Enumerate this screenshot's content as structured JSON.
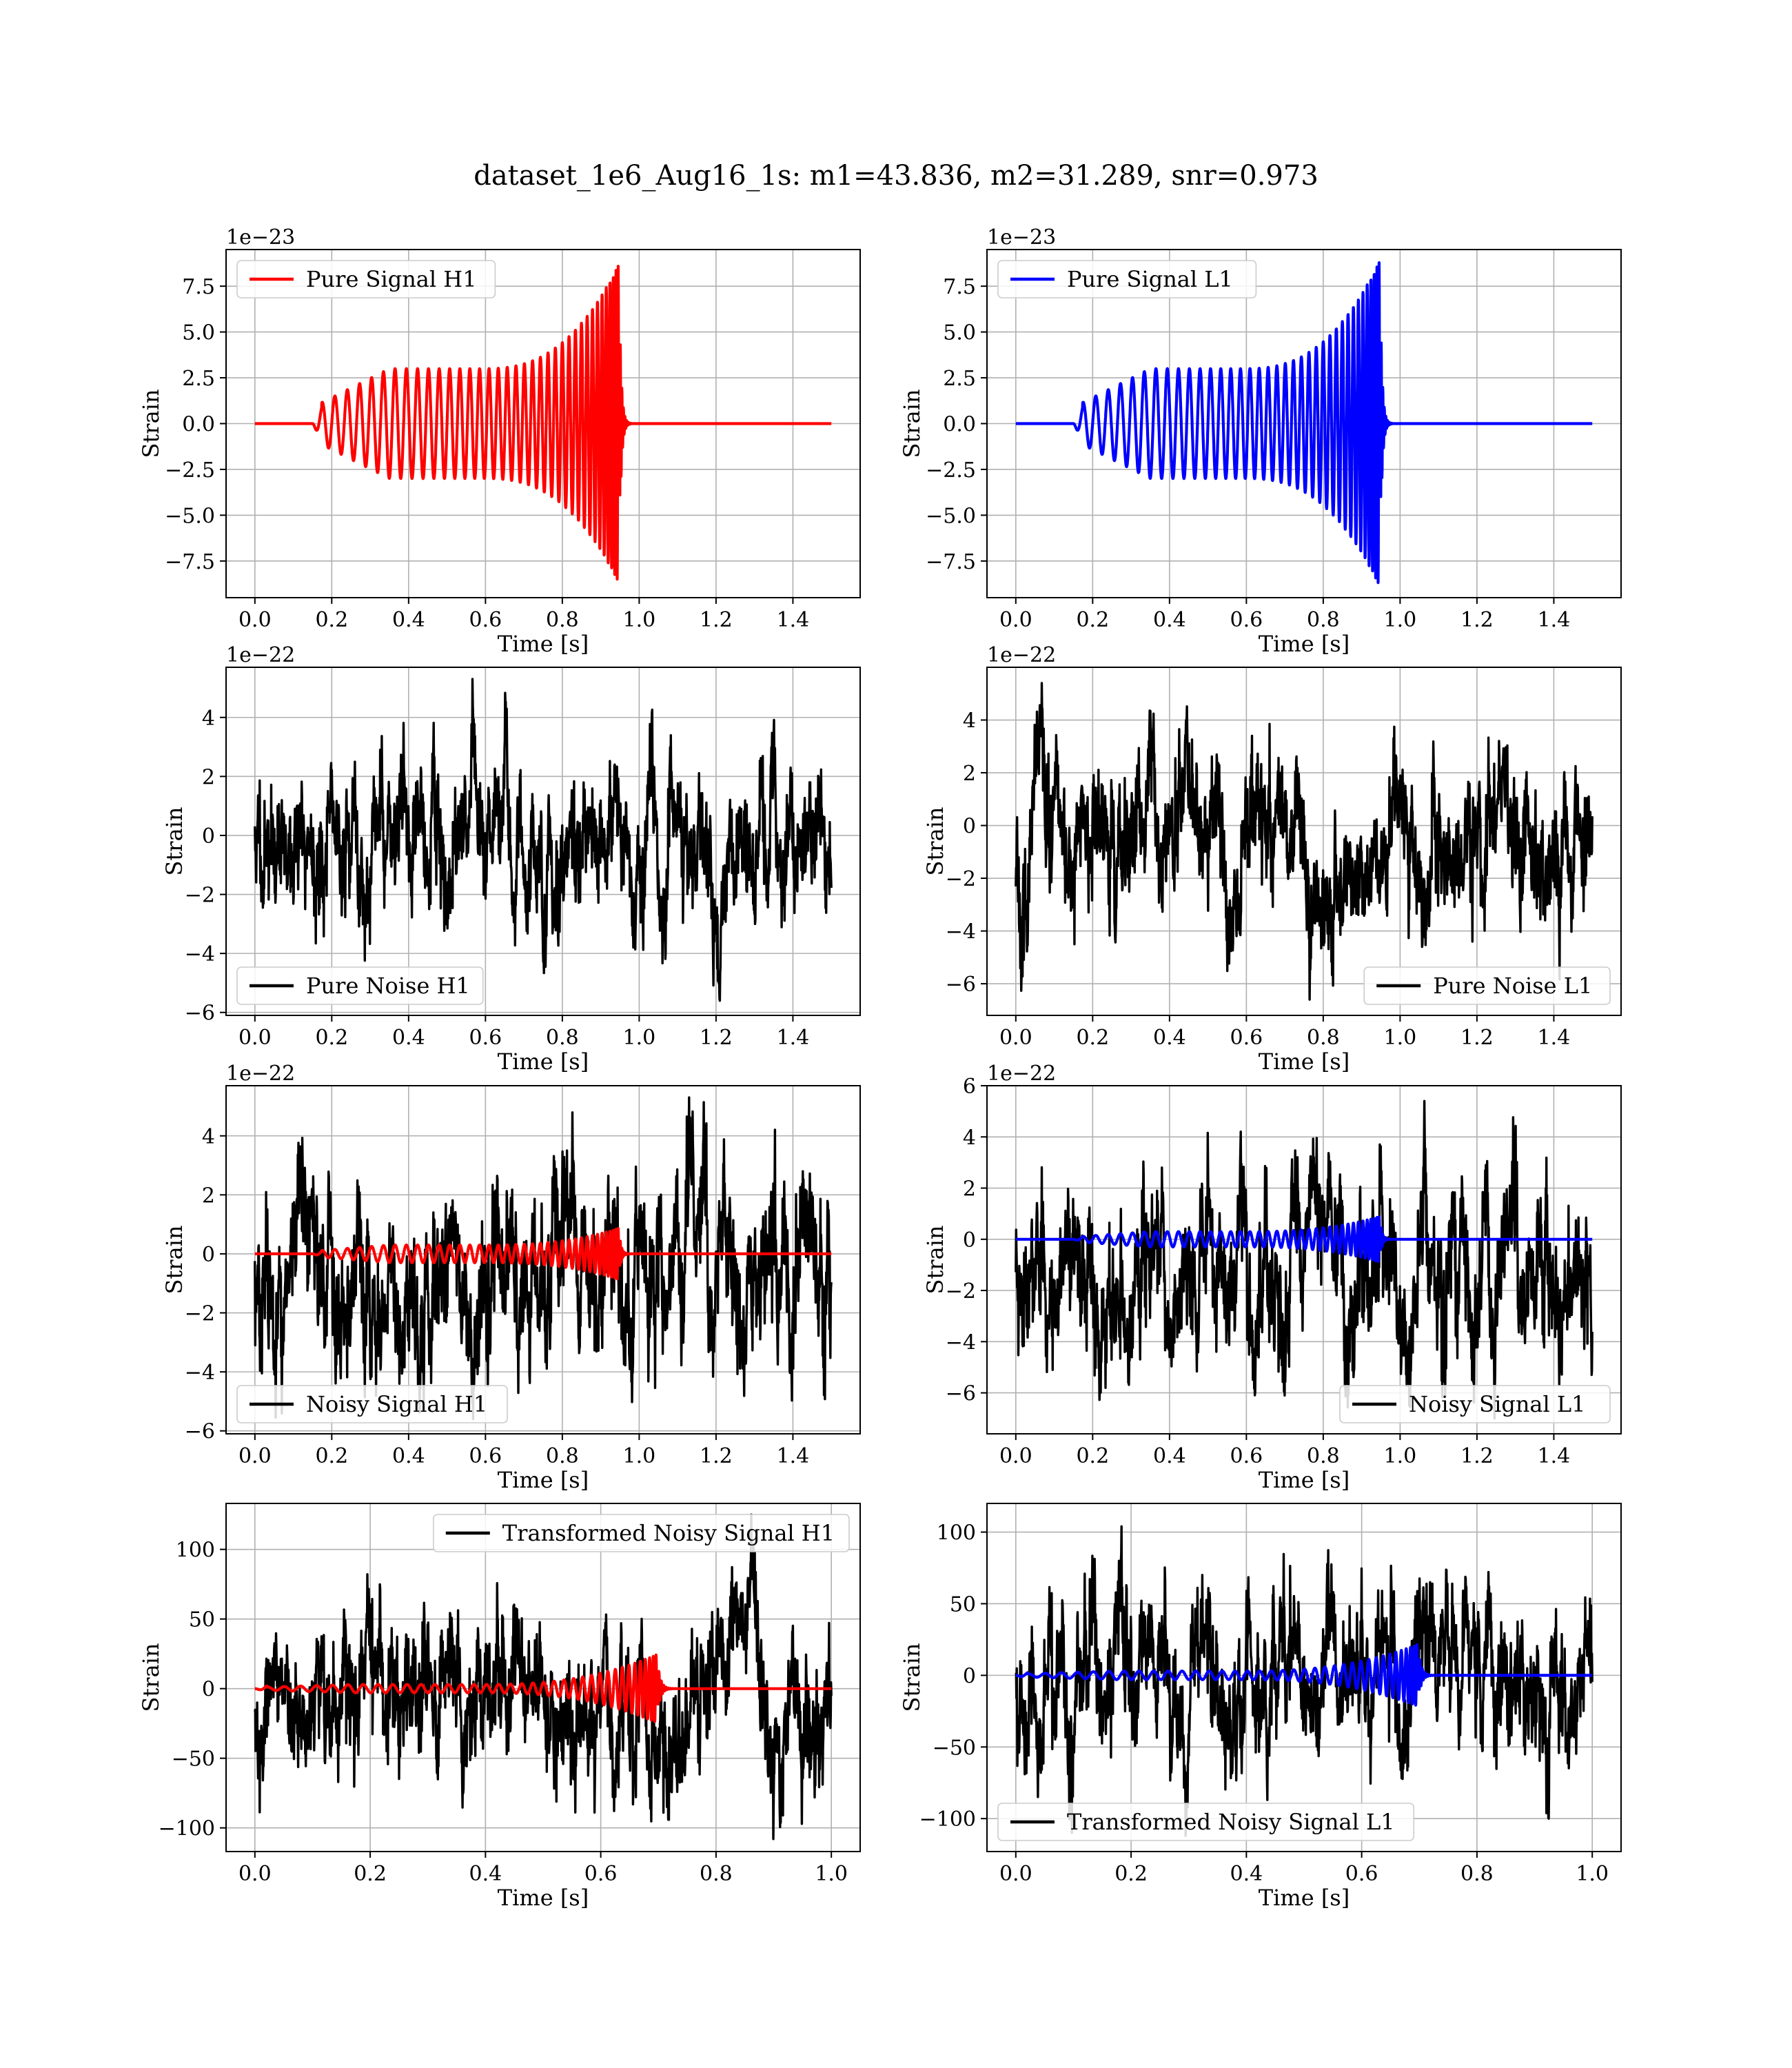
{
  "figure": {
    "title": "dataset_1e6_Aug16_1s: m1=43.836, m2=31.289, snr=0.973"
  },
  "colors": {
    "h1_signal": "#ff0000",
    "l1_signal": "#0000ff",
    "noise": "#000000",
    "grid": "#b0b0b0",
    "frame": "#000000"
  },
  "chart_data": [
    {
      "id": "pure-signal-h1",
      "type": "line",
      "xlabel": "Time [s]",
      "ylabel": "Strain",
      "offset_text": "1e−23",
      "xlim": [
        -0.075,
        1.575
      ],
      "ylim": [
        -9.5,
        9.5
      ],
      "xticks": [
        0.0,
        0.2,
        0.4,
        0.6,
        0.8,
        1.0,
        1.2,
        1.4
      ],
      "xtick_labels": [
        "0.0",
        "0.2",
        "0.4",
        "0.6",
        "0.8",
        "1.0",
        "1.2",
        "1.4"
      ],
      "yticks": [
        -7.5,
        -5.0,
        -2.5,
        0.0,
        2.5,
        5.0,
        7.5
      ],
      "ytick_labels": [
        "−7.5",
        "−5.0",
        "−2.5",
        "0.0",
        "2.5",
        "5.0",
        "7.5"
      ],
      "legend": {
        "loc": "upper-left",
        "label": "Pure Signal H1",
        "color": "#ff0000"
      },
      "grid": true,
      "series": [
        {
          "name": "Pure Signal H1",
          "kind": "chirp",
          "color": "#ff0000",
          "x_range": [
            0.0,
            1.5
          ],
          "onset": 0.15,
          "merger": 0.95,
          "peak": 8.8,
          "amp_at_onset": 0.9,
          "plateau": 3.0
        }
      ]
    },
    {
      "id": "pure-signal-l1",
      "type": "line",
      "xlabel": "Time [s]",
      "ylabel": "Strain",
      "offset_text": "1e−23",
      "xlim": [
        -0.075,
        1.575
      ],
      "ylim": [
        -9.5,
        9.5
      ],
      "xticks": [
        0.0,
        0.2,
        0.4,
        0.6,
        0.8,
        1.0,
        1.2,
        1.4
      ],
      "xtick_labels": [
        "0.0",
        "0.2",
        "0.4",
        "0.6",
        "0.8",
        "1.0",
        "1.2",
        "1.4"
      ],
      "yticks": [
        -7.5,
        -5.0,
        -2.5,
        0.0,
        2.5,
        5.0,
        7.5
      ],
      "ytick_labels": [
        "−7.5",
        "−5.0",
        "−2.5",
        "0.0",
        "2.5",
        "5.0",
        "7.5"
      ],
      "legend": {
        "loc": "upper-left",
        "label": "Pure Signal L1",
        "color": "#0000ff"
      },
      "grid": true,
      "series": [
        {
          "name": "Pure Signal L1",
          "kind": "chirp",
          "color": "#0000ff",
          "x_range": [
            0.0,
            1.5
          ],
          "onset": 0.15,
          "merger": 0.95,
          "peak": 9.0,
          "amp_at_onset": 0.9,
          "plateau": 3.0
        }
      ]
    },
    {
      "id": "pure-noise-h1",
      "type": "line",
      "xlabel": "Time [s]",
      "ylabel": "Strain",
      "offset_text": "1e−22",
      "xlim": [
        -0.075,
        1.575
      ],
      "ylim": [
        -6.1,
        5.7
      ],
      "xticks": [
        0.0,
        0.2,
        0.4,
        0.6,
        0.8,
        1.0,
        1.2,
        1.4
      ],
      "xtick_labels": [
        "0.0",
        "0.2",
        "0.4",
        "0.6",
        "0.8",
        "1.0",
        "1.2",
        "1.4"
      ],
      "yticks": [
        -6,
        -4,
        -2,
        0,
        2,
        4
      ],
      "ytick_labels": [
        "−6",
        "−4",
        "−2",
        "0",
        "2",
        "4"
      ],
      "legend": {
        "loc": "lower-left",
        "label": "Pure Noise H1",
        "color": "#000000"
      },
      "grid": true,
      "series": [
        {
          "name": "Pure Noise H1",
          "kind": "noise",
          "color": "#000000",
          "x_range": [
            0.0,
            1.5
          ],
          "y_min": -5.6,
          "y_max": 5.3,
          "seed": 11
        }
      ]
    },
    {
      "id": "pure-noise-l1",
      "type": "line",
      "xlabel": "Time [s]",
      "ylabel": "Strain",
      "offset_text": "1e−22",
      "xlim": [
        -0.075,
        1.575
      ],
      "ylim": [
        -7.2,
        6.0
      ],
      "xticks": [
        0.0,
        0.2,
        0.4,
        0.6,
        0.8,
        1.0,
        1.2,
        1.4
      ],
      "xtick_labels": [
        "0.0",
        "0.2",
        "0.4",
        "0.6",
        "0.8",
        "1.0",
        "1.2",
        "1.4"
      ],
      "yticks": [
        -6,
        -4,
        -2,
        0,
        2,
        4
      ],
      "ytick_labels": [
        "−6",
        "−4",
        "−2",
        "0",
        "2",
        "4"
      ],
      "legend": {
        "loc": "lower-right",
        "label": "Pure Noise L1",
        "color": "#000000"
      },
      "grid": true,
      "series": [
        {
          "name": "Pure Noise L1",
          "kind": "noise",
          "color": "#000000",
          "x_range": [
            0.0,
            1.5
          ],
          "y_min": -6.6,
          "y_max": 5.4,
          "seed": 23
        }
      ]
    },
    {
      "id": "noisy-signal-h1",
      "type": "line",
      "xlabel": "Time [s]",
      "ylabel": "Strain",
      "offset_text": "1e−22",
      "xlim": [
        -0.075,
        1.575
      ],
      "ylim": [
        -6.1,
        5.7
      ],
      "xticks": [
        0.0,
        0.2,
        0.4,
        0.6,
        0.8,
        1.0,
        1.2,
        1.4
      ],
      "xtick_labels": [
        "0.0",
        "0.2",
        "0.4",
        "0.6",
        "0.8",
        "1.0",
        "1.2",
        "1.4"
      ],
      "yticks": [
        -6,
        -4,
        -2,
        0,
        2,
        4
      ],
      "ytick_labels": [
        "−6",
        "−4",
        "−2",
        "0",
        "2",
        "4"
      ],
      "legend": {
        "loc": "lower-left",
        "label": "Noisy Signal H1",
        "color": "#000000"
      },
      "grid": true,
      "series": [
        {
          "name": "Noisy Signal H1",
          "kind": "noise",
          "color": "#000000",
          "x_range": [
            0.0,
            1.5
          ],
          "y_min": -5.6,
          "y_max": 5.3,
          "seed": 37
        },
        {
          "name": "",
          "kind": "chirp",
          "color": "#ff0000",
          "x_range": [
            0.0,
            1.5
          ],
          "onset": 0.15,
          "merger": 0.95,
          "peak": 0.88,
          "amp_at_onset": 0.09,
          "plateau": 0.3
        }
      ]
    },
    {
      "id": "noisy-signal-l1",
      "type": "line",
      "xlabel": "Time [s]",
      "ylabel": "Strain",
      "offset_text": "1e−22",
      "xlim": [
        -0.075,
        1.575
      ],
      "ylim": [
        -7.6,
        6.0
      ],
      "xticks": [
        0.0,
        0.2,
        0.4,
        0.6,
        0.8,
        1.0,
        1.2,
        1.4
      ],
      "xtick_labels": [
        "0.0",
        "0.2",
        "0.4",
        "0.6",
        "0.8",
        "1.0",
        "1.2",
        "1.4"
      ],
      "yticks": [
        -6,
        -4,
        -2,
        0,
        2,
        4,
        6
      ],
      "ytick_labels": [
        "−6",
        "−4",
        "−2",
        "0",
        "2",
        "4",
        "6"
      ],
      "legend": {
        "loc": "lower-right",
        "label": "Noisy Signal L1",
        "color": "#000000"
      },
      "grid": true,
      "series": [
        {
          "name": "Noisy Signal L1",
          "kind": "noise",
          "color": "#000000",
          "x_range": [
            0.0,
            1.5
          ],
          "y_min": -7.0,
          "y_max": 5.4,
          "seed": 53
        },
        {
          "name": "",
          "kind": "chirp",
          "color": "#0000ff",
          "x_range": [
            0.0,
            1.5
          ],
          "onset": 0.15,
          "merger": 0.95,
          "peak": 0.9,
          "amp_at_onset": 0.09,
          "plateau": 0.3
        }
      ]
    },
    {
      "id": "transformed-noisy-signal-h1",
      "type": "line",
      "xlabel": "Time [s]",
      "ylabel": "Strain",
      "offset_text": "",
      "xlim": [
        -0.05,
        1.05
      ],
      "ylim": [
        -117,
        133
      ],
      "xticks": [
        0.0,
        0.2,
        0.4,
        0.6,
        0.8,
        1.0
      ],
      "xtick_labels": [
        "0.0",
        "0.2",
        "0.4",
        "0.6",
        "0.8",
        "1.0"
      ],
      "yticks": [
        -100,
        -50,
        0,
        50,
        100
      ],
      "ytick_labels": [
        "−100",
        "−50",
        "0",
        "50",
        "100"
      ],
      "legend": {
        "loc": "upper-right",
        "label": "Transformed Noisy Signal H1",
        "color": "#000000"
      },
      "grid": true,
      "series": [
        {
          "name": "Transformed Noisy Signal H1",
          "kind": "noise",
          "color": "#000000",
          "x_range": [
            0.0,
            1.0
          ],
          "y_min": -108,
          "y_max": 125,
          "seed": 71
        },
        {
          "name": "",
          "kind": "chirp",
          "color": "#ff0000",
          "x_range": [
            0.0,
            1.0
          ],
          "onset": 0.0,
          "merger": 0.7,
          "peak": 25,
          "amp_at_onset": 2,
          "plateau": 3
        }
      ]
    },
    {
      "id": "transformed-noisy-signal-l1",
      "type": "line",
      "xlabel": "Time [s]",
      "ylabel": "Strain",
      "offset_text": "",
      "xlim": [
        -0.05,
        1.05
      ],
      "ylim": [
        -123,
        120
      ],
      "xticks": [
        0.0,
        0.2,
        0.4,
        0.6,
        0.8,
        1.0
      ],
      "xtick_labels": [
        "0.0",
        "0.2",
        "0.4",
        "0.6",
        "0.8",
        "1.0"
      ],
      "yticks": [
        -100,
        -50,
        0,
        50,
        100
      ],
      "ytick_labels": [
        "−100",
        "−50",
        "0",
        "50",
        "100"
      ],
      "legend": {
        "loc": "lower-left",
        "label": "Transformed Noisy Signal L1",
        "color": "#000000"
      },
      "grid": true,
      "series": [
        {
          "name": "Transformed Noisy Signal L1",
          "kind": "noise",
          "color": "#000000",
          "x_range": [
            0.0,
            1.0
          ],
          "y_min": -112,
          "y_max": 104,
          "seed": 89
        },
        {
          "name": "",
          "kind": "chirp",
          "color": "#0000ff",
          "x_range": [
            0.0,
            1.0
          ],
          "onset": 0.0,
          "merger": 0.7,
          "peak": 22,
          "amp_at_onset": 2,
          "plateau": 3
        }
      ]
    }
  ]
}
